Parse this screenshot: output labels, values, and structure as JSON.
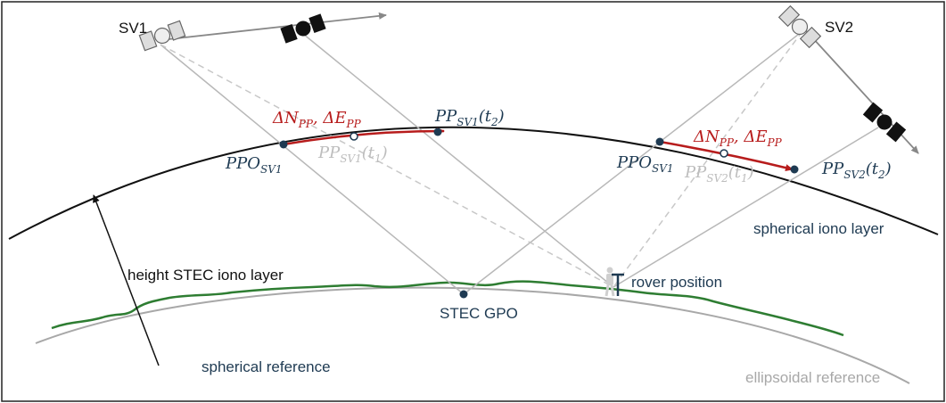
{
  "colors": {
    "frame": "#222222",
    "iono_layer": "#111111",
    "ray": "#b8b8b8",
    "ray_dashed": "#c8c8c8",
    "orbit": "#888888",
    "terrain": "#2e7d32",
    "ellipsoid": "#a8a8a8",
    "pierce_path": "#b71c1c",
    "pierce_point": "#1e3a52",
    "label_navy": "#1e3a52",
    "label_red": "#b71c1c",
    "label_gray": "#bdbdbd",
    "text_dark": "#111111"
  },
  "satellites": {
    "sv1": {
      "label": "SV1"
    },
    "sv2": {
      "label": "SV2"
    }
  },
  "pierce_labels": {
    "delta_sv1": {
      "main": "ΔN",
      "sub1": "PP",
      "sep": ", ΔE",
      "sub2": "PP"
    },
    "pp_sv1_t2": {
      "main": "PP",
      "sub": "SV1",
      "arg": "(t",
      "argsub": "2",
      "close": ")"
    },
    "ppo_sv1_left": {
      "main": "PPO",
      "sub": "SV1"
    },
    "pp_sv1_t1": {
      "main": "PP",
      "sub": "SV1",
      "arg": "(t",
      "argsub": "1",
      "close": ")"
    },
    "ppo_sv1_right": {
      "main": "PPO",
      "sub": "SV1"
    },
    "delta_sv2": {
      "main": "ΔN",
      "sub1": "PP",
      "sep": ", ΔE",
      "sub2": "PP"
    },
    "pp_sv2_t1": {
      "main": "PP",
      "sub": "SV2",
      "arg": "(t",
      "argsub": "1",
      "close": ")"
    },
    "pp_sv2_t2": {
      "main": "PP",
      "sub": "SV2",
      "arg": "(t",
      "argsub": "2",
      "close": ")"
    }
  },
  "labels": {
    "iono_layer": "spherical iono layer",
    "iono_height": "height STEC iono layer",
    "rover": "rover position",
    "gpo": "STEC GPO",
    "spherical_ref": "spherical reference",
    "ellipsoidal_ref": "ellipsoidal reference"
  },
  "icons": [
    "satellite-icon",
    "person-icon",
    "antenna-icon",
    "arrowhead-icon"
  ]
}
